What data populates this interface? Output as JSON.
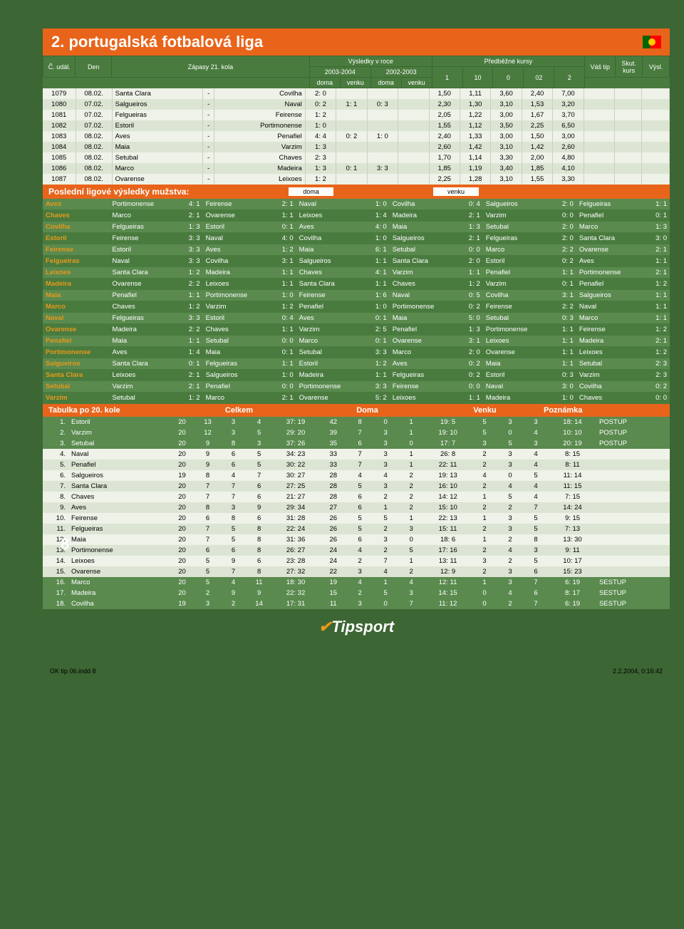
{
  "title": "2. portugalská fotbalová liga",
  "header": {
    "c_udal": "Č. udál.",
    "den": "Den",
    "zapasy": "Zápasy 21. kola",
    "vysledky": "Výsledky v roce",
    "s2003": "2003-2004",
    "s2002": "2002-2003",
    "doma": "doma",
    "venku": "venku",
    "predb": "Předběžné kursy",
    "k1": "1",
    "k10": "10",
    "k0": "0",
    "k02": "02",
    "k2": "2",
    "tip": "Váš tip",
    "skut": "Skut. kurs",
    "vysl": "Výsl."
  },
  "matches": [
    {
      "id": "1079",
      "date": "08.02.",
      "home": "Santa Clara",
      "away": "Covilha",
      "d1": "2: 0",
      "v1": "",
      "d2": "",
      "v2": "",
      "o1": "1,50",
      "o10": "1,11",
      "o0": "3,60",
      "o02": "2,40",
      "o2": "7,00"
    },
    {
      "id": "1080",
      "date": "07.02.",
      "home": "Salgueiros",
      "away": "Naval",
      "d1": "0: 2",
      "v1": "1: 1",
      "d2": "0: 3",
      "v2": "",
      "o1": "2,30",
      "o10": "1,30",
      "o0": "3,10",
      "o02": "1,53",
      "o2": "3,20"
    },
    {
      "id": "1081",
      "date": "07.02.",
      "home": "Felgueiras",
      "away": "Feirense",
      "d1": "1: 2",
      "v1": "",
      "d2": "",
      "v2": "",
      "o1": "2,05",
      "o10": "1,22",
      "o0": "3,00",
      "o02": "1,67",
      "o2": "3,70"
    },
    {
      "id": "1082",
      "date": "07.02.",
      "home": "Estoril",
      "away": "Portimonense",
      "d1": "1: 0",
      "v1": "",
      "d2": "",
      "v2": "",
      "o1": "1,55",
      "o10": "1,12",
      "o0": "3,50",
      "o02": "2,25",
      "o2": "6,50"
    },
    {
      "id": "1083",
      "date": "08.02.",
      "home": "Aves",
      "away": "Penafiel",
      "d1": "4: 4",
      "v1": "0: 2",
      "d2": "1: 0",
      "v2": "",
      "o1": "2,40",
      "o10": "1,33",
      "o0": "3,00",
      "o02": "1,50",
      "o2": "3,00"
    },
    {
      "id": "1084",
      "date": "08.02.",
      "home": "Maia",
      "away": "Varzim",
      "d1": "1: 3",
      "v1": "",
      "d2": "",
      "v2": "",
      "o1": "2,60",
      "o10": "1,42",
      "o0": "3,10",
      "o02": "1,42",
      "o2": "2,60"
    },
    {
      "id": "1085",
      "date": "08.02.",
      "home": "Setubal",
      "away": "Chaves",
      "d1": "2: 3",
      "v1": "",
      "d2": "",
      "v2": "",
      "o1": "1,70",
      "o10": "1,14",
      "o0": "3,30",
      "o02": "2,00",
      "o2": "4,80"
    },
    {
      "id": "1086",
      "date": "08.02.",
      "home": "Marco",
      "away": "Madeira",
      "d1": "1: 3",
      "v1": "0: 1",
      "d2": "3: 3",
      "v2": "",
      "o1": "1,85",
      "o10": "1,19",
      "o0": "3,40",
      "o02": "1,85",
      "o2": "4,10"
    },
    {
      "id": "1087",
      "date": "08.02.",
      "home": "Ovarense",
      "away": "Leixoes",
      "d1": "1: 2",
      "v1": "",
      "d2": "",
      "v2": "",
      "o1": "2,25",
      "o10": "1,28",
      "o0": "3,10",
      "o02": "1,55",
      "o2": "3,30"
    }
  ],
  "last_results_title": "Poslední ligové výsledky mužstva:",
  "sub_doma": "doma",
  "sub_venku": "venku",
  "results": [
    [
      "Aves",
      "Portimonense",
      "4: 1",
      "Feirense",
      "2: 1",
      "Naval",
      "1: 0",
      "Covilha",
      "0: 4",
      "Salgueiros",
      "2: 0",
      "Felgueiras",
      "1: 1"
    ],
    [
      "Chaves",
      "Marco",
      "2: 1",
      "Ovarense",
      "1: 1",
      "Leixoes",
      "1: 4",
      "Madeira",
      "2: 1",
      "Varzim",
      "0: 0",
      "Penafiel",
      "0: 1"
    ],
    [
      "Covilha",
      "Felgueiras",
      "1: 3",
      "Estoril",
      "0: 1",
      "Aves",
      "4: 0",
      "Maia",
      "1: 3",
      "Setubal",
      "2: 0",
      "Marco",
      "1: 3"
    ],
    [
      "Estoril",
      "Feirense",
      "3: 3",
      "Naval",
      "4: 0",
      "Covilha",
      "1: 0",
      "Salgueiros",
      "2: 1",
      "Felgueiras",
      "2: 0",
      "Santa Clara",
      "3: 0"
    ],
    [
      "Feirense",
      "Estoril",
      "3: 3",
      "Aves",
      "1: 2",
      "Maia",
      "6: 1",
      "Setubal",
      "0: 0",
      "Marco",
      "2: 2",
      "Ovarense",
      "2: 1"
    ],
    [
      "Felgueiras",
      "Naval",
      "3: 3",
      "Covilha",
      "3: 1",
      "Salgueiros",
      "1: 1",
      "Santa Clara",
      "2: 0",
      "Estoril",
      "0: 2",
      "Aves",
      "1: 1"
    ],
    [
      "Leixoes",
      "Santa Clara",
      "1: 2",
      "Madeira",
      "1: 1",
      "Chaves",
      "4: 1",
      "Varzim",
      "1: 1",
      "Penafiel",
      "1: 1",
      "Portimonense",
      "2: 1"
    ],
    [
      "Madeira",
      "Ovarense",
      "2: 2",
      "Leixoes",
      "1: 1",
      "Santa Clara",
      "1: 1",
      "Chaves",
      "1: 2",
      "Varzim",
      "0: 1",
      "Penafiel",
      "1: 2"
    ],
    [
      "Maia",
      "Penafiel",
      "1: 1",
      "Portimonense",
      "1: 0",
      "Feirense",
      "1: 6",
      "Naval",
      "0: 5",
      "Covilha",
      "3: 1",
      "Salgueiros",
      "1: 1"
    ],
    [
      "Marco",
      "Chaves",
      "1: 2",
      "Varzim",
      "1: 2",
      "Penafiel",
      "1: 0",
      "Portimonense",
      "0: 2",
      "Feirense",
      "2: 2",
      "Naval",
      "1: 1"
    ],
    [
      "Naval",
      "Felgueiras",
      "3: 3",
      "Estoril",
      "0: 4",
      "Aves",
      "0: 1",
      "Maia",
      "5: 0",
      "Setubal",
      "0: 3",
      "Marco",
      "1: 1"
    ],
    [
      "Ovarense",
      "Madeira",
      "2: 2",
      "Chaves",
      "1: 1",
      "Varzim",
      "2: 5",
      "Penafiel",
      "1: 3",
      "Portimonense",
      "1: 1",
      "Feirense",
      "1: 2"
    ],
    [
      "Penafiel",
      "Maia",
      "1: 1",
      "Setubal",
      "0: 0",
      "Marco",
      "0: 1",
      "Ovarense",
      "3: 1",
      "Leixoes",
      "1: 1",
      "Madeira",
      "2: 1"
    ],
    [
      "Portimonense",
      "Aves",
      "1: 4",
      "Maia",
      "0: 1",
      "Setubal",
      "3: 3",
      "Marco",
      "2: 0",
      "Ovarense",
      "1: 1",
      "Leixoes",
      "1: 2"
    ],
    [
      "Salgueiros",
      "Santa Clara",
      "0: 1",
      "Felgueiras",
      "1: 1",
      "Estoril",
      "1: 2",
      "Aves",
      "0: 2",
      "Maia",
      "1: 1",
      "Setubal",
      "2: 3"
    ],
    [
      "Santa Clara",
      "Leixoes",
      "2: 1",
      "Salgueiros",
      "1: 0",
      "Madeira",
      "1: 1",
      "Felgueiras",
      "0: 2",
      "Estoril",
      "0: 3",
      "Varzim",
      "2: 3"
    ],
    [
      "Setubal",
      "Varzim",
      "2: 1",
      "Penafiel",
      "0: 0",
      "Portimonense",
      "3: 3",
      "Feirense",
      "0: 0",
      "Naval",
      "3: 0",
      "Covilha",
      "0: 2"
    ],
    [
      "Varzim",
      "Setubal",
      "1: 2",
      "Marco",
      "2: 1",
      "Ovarense",
      "5: 2",
      "Leixoes",
      "1: 1",
      "Madeira",
      "1: 0",
      "Chaves",
      "0: 0"
    ]
  ],
  "standings_title": "Tabulka po 20. kole",
  "standings_headers": {
    "celkem": "Celkem",
    "doma": "Doma",
    "venku": "Venku",
    "pozn": "Poznámka"
  },
  "standings": [
    {
      "pos": "1.",
      "team": "Estoril",
      "p": "20",
      "w": "13",
      "d": "3",
      "l": "4",
      "g": "37: 19",
      "pts": "42",
      "hw": "8",
      "hd": "0",
      "hl": "1",
      "hg": "19: 5",
      "aw": "5",
      "ad": "3",
      "al": "3",
      "ag": "18: 14",
      "note": "POSTUP"
    },
    {
      "pos": "2.",
      "team": "Varzim",
      "p": "20",
      "w": "12",
      "d": "3",
      "l": "5",
      "g": "29: 20",
      "pts": "39",
      "hw": "7",
      "hd": "3",
      "hl": "1",
      "hg": "19: 10",
      "aw": "5",
      "ad": "0",
      "al": "4",
      "ag": "10: 10",
      "note": "POSTUP"
    },
    {
      "pos": "3.",
      "team": "Setubal",
      "p": "20",
      "w": "9",
      "d": "8",
      "l": "3",
      "g": "37: 26",
      "pts": "35",
      "hw": "6",
      "hd": "3",
      "hl": "0",
      "hg": "17: 7",
      "aw": "3",
      "ad": "5",
      "al": "3",
      "ag": "20: 19",
      "note": "POSTUP"
    },
    {
      "pos": "4.",
      "team": "Naval",
      "p": "20",
      "w": "9",
      "d": "6",
      "l": "5",
      "g": "34: 23",
      "pts": "33",
      "hw": "7",
      "hd": "3",
      "hl": "1",
      "hg": "26: 8",
      "aw": "2",
      "ad": "3",
      "al": "4",
      "ag": "8: 15",
      "note": ""
    },
    {
      "pos": "5.",
      "team": "Penafiel",
      "p": "20",
      "w": "9",
      "d": "6",
      "l": "5",
      "g": "30: 22",
      "pts": "33",
      "hw": "7",
      "hd": "3",
      "hl": "1",
      "hg": "22: 11",
      "aw": "2",
      "ad": "3",
      "al": "4",
      "ag": "8: 11",
      "note": ""
    },
    {
      "pos": "6.",
      "team": "Salgueiros",
      "p": "19",
      "w": "8",
      "d": "4",
      "l": "7",
      "g": "30: 27",
      "pts": "28",
      "hw": "4",
      "hd": "4",
      "hl": "2",
      "hg": "19: 13",
      "aw": "4",
      "ad": "0",
      "al": "5",
      "ag": "11: 14",
      "note": ""
    },
    {
      "pos": "7.",
      "team": "Santa Clara",
      "p": "20",
      "w": "7",
      "d": "7",
      "l": "6",
      "g": "27: 25",
      "pts": "28",
      "hw": "5",
      "hd": "3",
      "hl": "2",
      "hg": "16: 10",
      "aw": "2",
      "ad": "4",
      "al": "4",
      "ag": "11: 15",
      "note": ""
    },
    {
      "pos": "8.",
      "team": "Chaves",
      "p": "20",
      "w": "7",
      "d": "7",
      "l": "6",
      "g": "21: 27",
      "pts": "28",
      "hw": "6",
      "hd": "2",
      "hl": "2",
      "hg": "14: 12",
      "aw": "1",
      "ad": "5",
      "al": "4",
      "ag": "7: 15",
      "note": ""
    },
    {
      "pos": "9.",
      "team": "Aves",
      "p": "20",
      "w": "8",
      "d": "3",
      "l": "9",
      "g": "29: 34",
      "pts": "27",
      "hw": "6",
      "hd": "1",
      "hl": "2",
      "hg": "15: 10",
      "aw": "2",
      "ad": "2",
      "al": "7",
      "ag": "14: 24",
      "note": ""
    },
    {
      "pos": "10.",
      "team": "Feirense",
      "p": "20",
      "w": "6",
      "d": "8",
      "l": "6",
      "g": "31: 28",
      "pts": "26",
      "hw": "5",
      "hd": "5",
      "hl": "1",
      "hg": "22: 13",
      "aw": "1",
      "ad": "3",
      "al": "5",
      "ag": "9: 15",
      "note": ""
    },
    {
      "pos": "11.",
      "team": "Felgueiras",
      "p": "20",
      "w": "7",
      "d": "5",
      "l": "8",
      "g": "22: 24",
      "pts": "26",
      "hw": "5",
      "hd": "2",
      "hl": "3",
      "hg": "15: 11",
      "aw": "2",
      "ad": "3",
      "al": "5",
      "ag": "7: 13",
      "note": ""
    },
    {
      "pos": "12.",
      "team": "Maia",
      "p": "20",
      "w": "7",
      "d": "5",
      "l": "8",
      "g": "31: 36",
      "pts": "26",
      "hw": "6",
      "hd": "3",
      "hl": "0",
      "hg": "18: 6",
      "aw": "1",
      "ad": "2",
      "al": "8",
      "ag": "13: 30",
      "note": ""
    },
    {
      "pos": "13.",
      "team": "Portimonense",
      "p": "20",
      "w": "6",
      "d": "6",
      "l": "8",
      "g": "26: 27",
      "pts": "24",
      "hw": "4",
      "hd": "2",
      "hl": "5",
      "hg": "17: 16",
      "aw": "2",
      "ad": "4",
      "al": "3",
      "ag": "9: 11",
      "note": ""
    },
    {
      "pos": "14.",
      "team": "Leixoes",
      "p": "20",
      "w": "5",
      "d": "9",
      "l": "6",
      "g": "23: 28",
      "pts": "24",
      "hw": "2",
      "hd": "7",
      "hl": "1",
      "hg": "13: 11",
      "aw": "3",
      "ad": "2",
      "al": "5",
      "ag": "10: 17",
      "note": ""
    },
    {
      "pos": "15.",
      "team": "Ovarense",
      "p": "20",
      "w": "5",
      "d": "7",
      "l": "8",
      "g": "27: 32",
      "pts": "22",
      "hw": "3",
      "hd": "4",
      "hl": "2",
      "hg": "12: 9",
      "aw": "2",
      "ad": "3",
      "al": "6",
      "ag": "15: 23",
      "note": ""
    },
    {
      "pos": "16.",
      "team": "Marco",
      "p": "20",
      "w": "5",
      "d": "4",
      "l": "11",
      "g": "18: 30",
      "pts": "19",
      "hw": "4",
      "hd": "1",
      "hl": "4",
      "hg": "12: 11",
      "aw": "1",
      "ad": "3",
      "al": "7",
      "ag": "6: 19",
      "note": "SESTUP"
    },
    {
      "pos": "17.",
      "team": "Madeira",
      "p": "20",
      "w": "2",
      "d": "9",
      "l": "9",
      "g": "22: 32",
      "pts": "15",
      "hw": "2",
      "hd": "5",
      "hl": "3",
      "hg": "14: 15",
      "aw": "0",
      "ad": "4",
      "al": "6",
      "ag": "8: 17",
      "note": "SESTUP"
    },
    {
      "pos": "18.",
      "team": "Covilha",
      "p": "19",
      "w": "3",
      "d": "2",
      "l": "14",
      "g": "17: 31",
      "pts": "11",
      "hw": "3",
      "hd": "0",
      "hl": "7",
      "hg": "11: 12",
      "aw": "0",
      "ad": "2",
      "al": "7",
      "ag": "6: 19",
      "note": "SESTUP"
    }
  ],
  "page_number": "8",
  "logo_text": "Tipsport",
  "footer_left": "OK tip 06.indd   8",
  "footer_right": "2.2.2004, 0:16:42"
}
